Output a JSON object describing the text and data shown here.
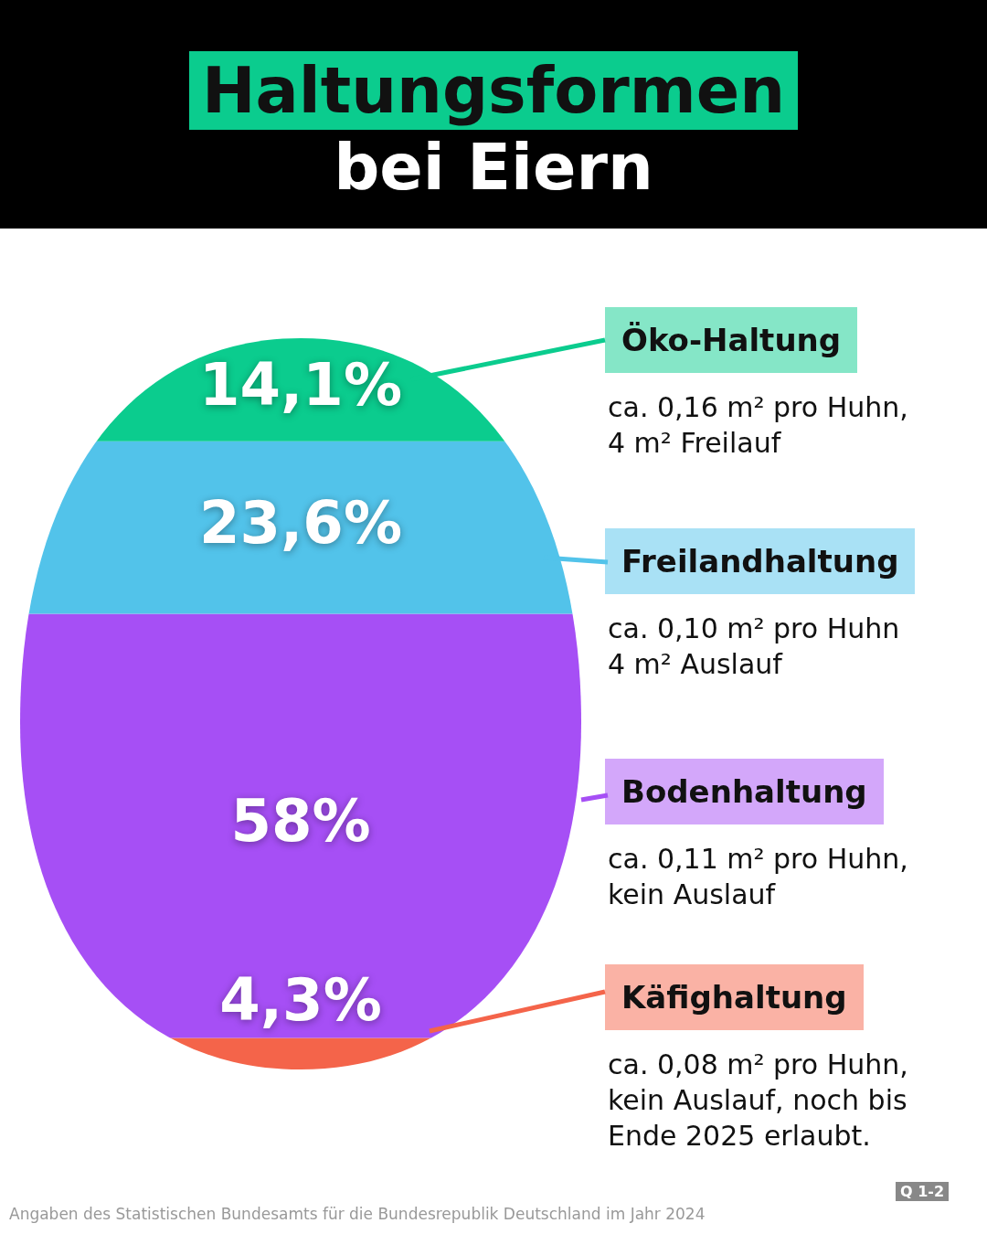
{
  "chart_data": {
    "type": "bar",
    "stacked": true,
    "title": "Haltungsformen",
    "subtitle": "bei Eiern",
    "categories": [
      null
    ],
    "series": [
      {
        "name": "Käfighaltung",
        "color": "#f4644a",
        "values": [
          4.3
        ],
        "value_labels": [
          "4,3%"
        ]
      },
      {
        "name": "Bodenhaltung",
        "color": "#a64ff5",
        "values": [
          58
        ],
        "value_labels": [
          "58%"
        ]
      },
      {
        "name": "Freilandhaltung",
        "color": "#52c3ea",
        "values": [
          23.6
        ],
        "value_labels": [
          "23,6%"
        ]
      },
      {
        "name": "Öko-Haltung",
        "color": "#0bcc8e",
        "values": [
          14.1
        ],
        "value_labels": [
          "14,1%"
        ]
      }
    ],
    "legend": "right",
    "tick_labels": false,
    "annotations": [
      "ca. 0,08 m² pro Huhn,\nkein Auslauf, noch bis\nEnde 2025 erlaubt.",
      "ca. 0,11 m² pro Huhn,\nkein Auslauf",
      "ca. 0,10 m² pro Huhn\n4 m² Auslauf",
      "ca. 0,16 m² pro Huhn,\n4 m² Freilauf",
      "Angaben des Statistischen Bundesamts für die Bundesrepublik Deutschland im Jahr 2024",
      "Q 1-2"
    ]
  }
}
